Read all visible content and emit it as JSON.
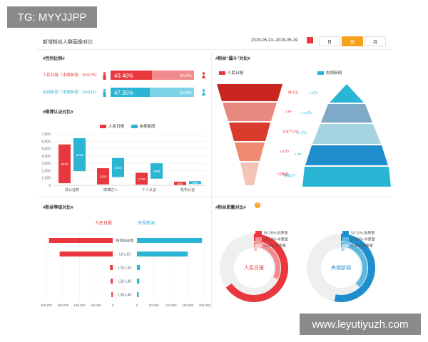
{
  "watermark_top": "TG: MYYJJPP",
  "watermark_bottom": "www.leyutiyuzh.com",
  "header": {
    "title": "新增粉丝人群画像对比",
    "date_range": "2019-05-13--2019-05-19",
    "tabs": [
      "日",
      "周",
      "月"
    ],
    "active_tab": "周"
  },
  "gender": {
    "title": "#性别比例#",
    "rows": [
      {
        "label": "人民日报（本周新增：204775）",
        "male": "49.46%",
        "female": "50.54%",
        "color": "#e8383d",
        "light": "#f28b8e"
      },
      {
        "label": "央视新闻（本周新增：204116）",
        "male": "47.35%",
        "female": "52.65%",
        "color": "#2bb5d4",
        "light": "#7fd3e8"
      }
    ]
  },
  "weibo": {
    "title": "#微博认证对比#",
    "legend": [
      "人民日报",
      "央视新闻"
    ],
    "chart_data": {
      "type": "bar",
      "categories": [
        "非认证数",
        "微博达人",
        "个人认证",
        "机构认证"
      ],
      "series": [
        {
          "name": "人民日报",
          "values": [
            5570,
            2325,
            1709,
            484
          ],
          "color": "#e8383d"
        },
        {
          "name": "央视新闻",
          "values": [
            6423,
            3725,
            2996,
            562
          ],
          "color": "#2bb5d4"
        }
      ],
      "yticks": [
        "7,000",
        "6,000",
        "5,000",
        "4,000",
        "3,000",
        "2,000",
        "1,000",
        "0"
      ],
      "ylim": [
        0,
        7000
      ]
    }
  },
  "funnel": {
    "title": "#粉丝“漏斗”对比#",
    "legend_left": "人民日报",
    "legend_right": "央视新闻",
    "left_labels": [
      "微认证",
      "3.9#",
      "企业个认证",
      "1.6万#",
      "7万数量"
    ],
    "right_labels": [
      "1.6万#",
      "4.12万#",
      "1.7万#",
      "1.3#",
      "数量2万"
    ]
  },
  "level": {
    "title": "#粉丝等级对比#",
    "left_name": "人民日报",
    "right_name": "央视新闻",
    "chart_data": {
      "type": "bar",
      "categories": [
        "新增粉丝数",
        "L0-L10",
        "L10-L20",
        "L20-L30",
        "L30-L48"
      ],
      "series": [
        {
          "name": "人民日报",
          "values": [
            192000,
            160000,
            8000,
            6000,
            4000
          ],
          "color": "#e8383d"
        },
        {
          "name": "央视新闻",
          "values": [
            192000,
            150000,
            9000,
            7000,
            5000
          ],
          "color": "#2bb5d4"
        }
      ],
      "left_ticks": [
        "200,000",
        "150,000",
        "100,000",
        "50,000",
        "0"
      ],
      "right_ticks": [
        "0",
        "50,000",
        "100,000",
        "150,000",
        "200,000"
      ],
      "xlim": [
        0,
        200000
      ]
    }
  },
  "quality": {
    "title": "#粉丝质量对比#",
    "charts": [
      {
        "name": "人民日报",
        "colors": [
          "#e8383d",
          "#f28b8e",
          "#f8c9ca"
        ],
        "legend": [
          "65.26%-低质量",
          "32.10%-中质量",
          "2.64%-高质量"
        ],
        "values": [
          65.26,
          32.1,
          2.64
        ]
      },
      {
        "name": "央视新闻",
        "colors": [
          "#1f8ecd",
          "#5bb8e0",
          "#b7dcee"
        ],
        "legend": [
          "53.11%-低质量",
          "37.83%-中质量",
          "3.06%-高质量"
        ],
        "values": [
          53.11,
          37.83,
          3.06
        ]
      }
    ]
  }
}
